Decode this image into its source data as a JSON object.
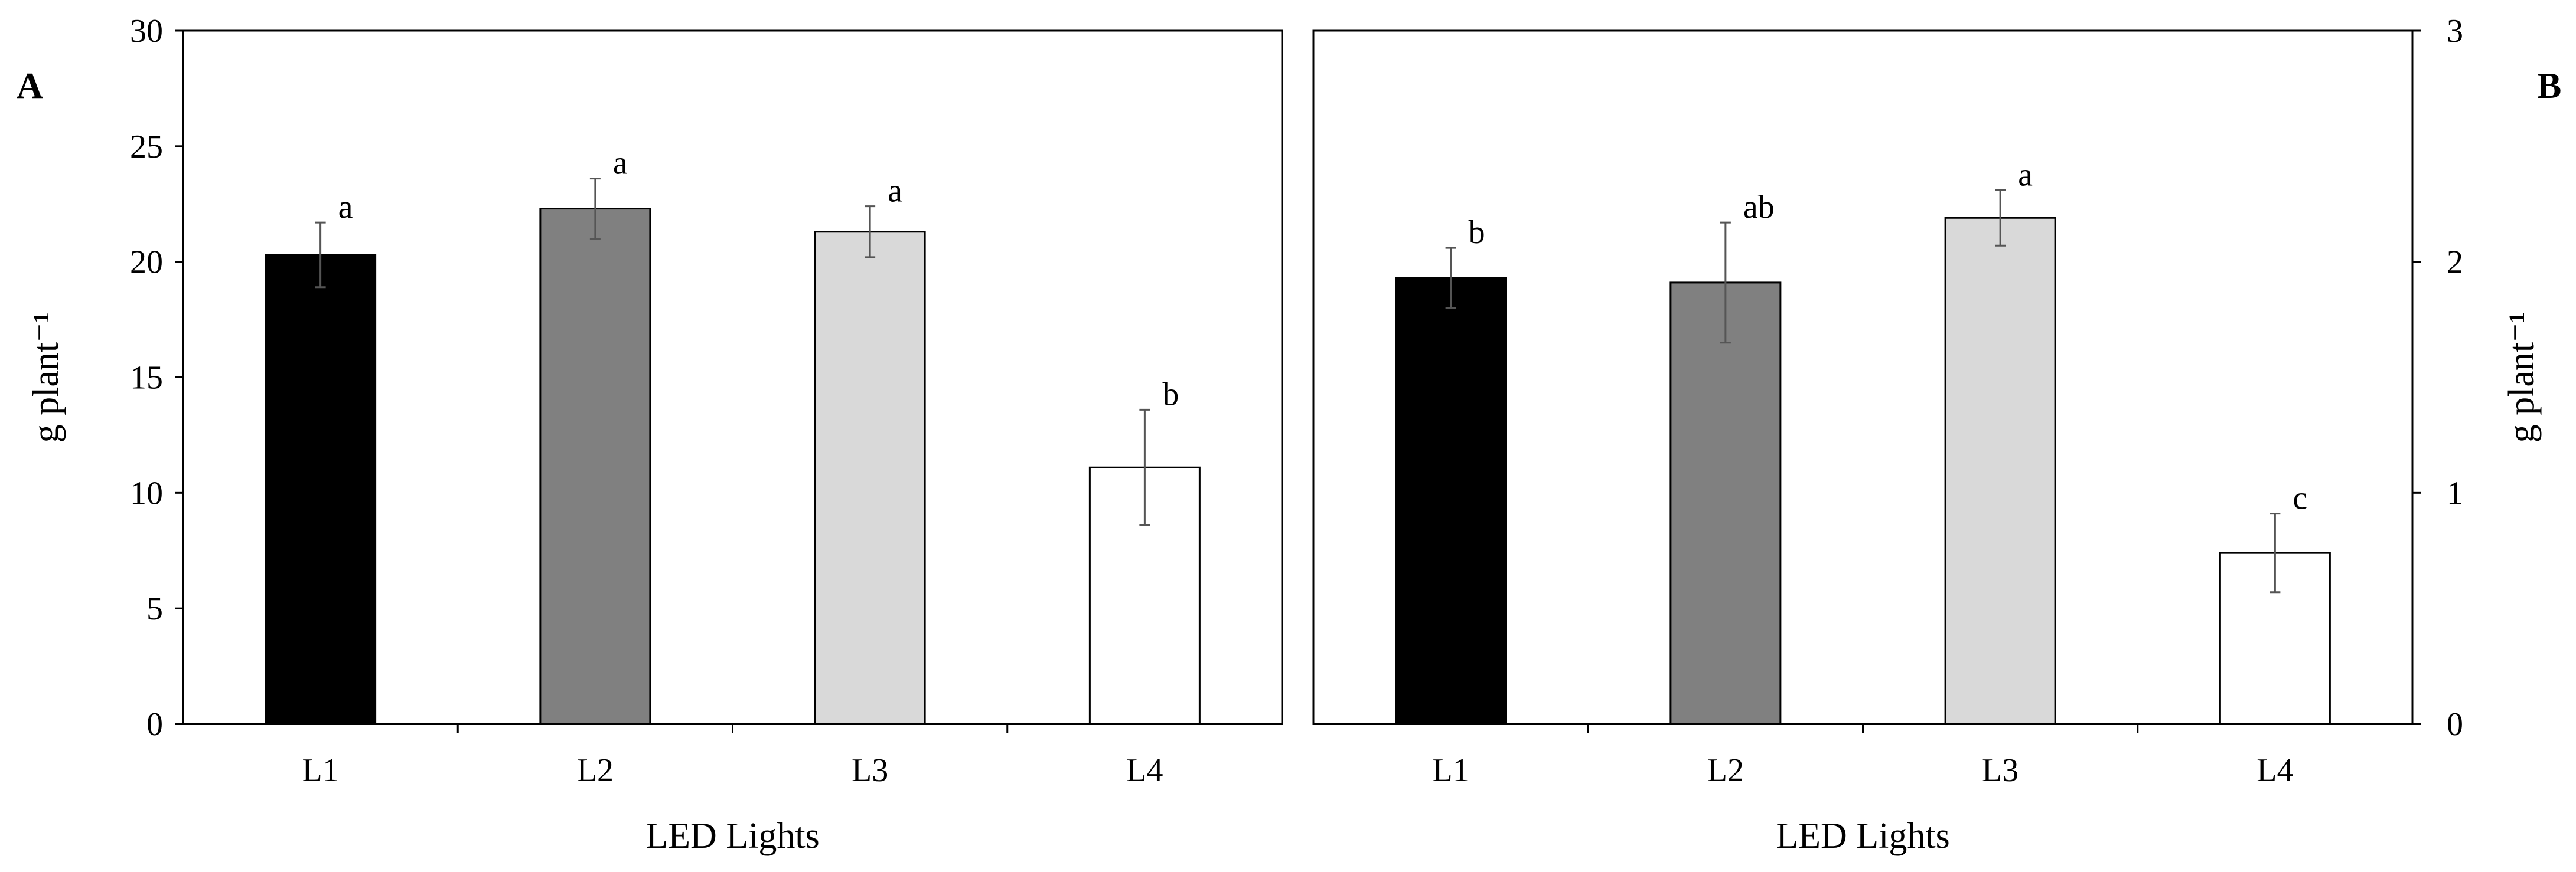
{
  "chart_data": [
    {
      "type": "bar",
      "panel_label": "A",
      "categories": [
        "L1",
        "L2",
        "L3",
        "L4"
      ],
      "values": [
        20.3,
        22.3,
        21.3,
        11.1
      ],
      "error": [
        1.4,
        1.3,
        1.1,
        2.5
      ],
      "significance": [
        "a",
        "a",
        "a",
        "b"
      ],
      "bar_colors": [
        "#000000",
        "#808080",
        "#d9d9d9",
        "#ffffff"
      ],
      "xlabel": "LED Lights",
      "ylabel": "g plant⁻¹",
      "ylim": [
        0,
        30
      ],
      "yticks": [
        0,
        5,
        10,
        15,
        20,
        25,
        30
      ],
      "yaxis_side": "left",
      "grid": false,
      "legend": "none"
    },
    {
      "type": "bar",
      "panel_label": "B",
      "categories": [
        "L1",
        "L2",
        "L3",
        "L4"
      ],
      "values": [
        1.93,
        1.91,
        2.19,
        0.74
      ],
      "error": [
        0.13,
        0.26,
        0.12,
        0.17
      ],
      "significance": [
        "b",
        "ab",
        "a",
        "c"
      ],
      "bar_colors": [
        "#000000",
        "#808080",
        "#d9d9d9",
        "#ffffff"
      ],
      "xlabel": "LED Lights",
      "ylabel": "g plant⁻¹",
      "ylim": [
        0,
        3
      ],
      "yticks": [
        0,
        1,
        2,
        3
      ],
      "yaxis_side": "right",
      "grid": false,
      "legend": "none"
    }
  ]
}
